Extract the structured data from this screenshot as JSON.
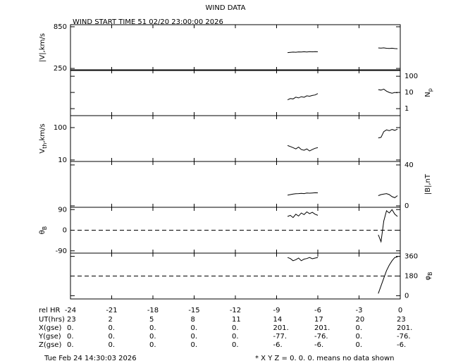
{
  "header": {
    "title": "WIND DATA",
    "subtitle": "WIND START TIME  51 02/20 23:00:00 2026"
  },
  "chart_data": [
    {
      "type": "line",
      "y_label": "|V|,km/s",
      "axis_side": "left",
      "log": false,
      "color": "#000000",
      "xlim": [
        -24,
        0
      ],
      "xticks": [
        -24,
        -21,
        -18,
        -15,
        -12,
        -9,
        -6,
        -3,
        0
      ],
      "ylim": [
        220,
        880
      ],
      "yticks": [
        250,
        850
      ],
      "x": [
        -8.2,
        -8.0,
        -7.8,
        -7.6,
        -7.4,
        -7.2,
        -7.0,
        -6.8,
        -6.6,
        -6.4,
        -6.2,
        -6.0,
        -4,
        -1.6,
        -1.4,
        -1.2,
        -1.0,
        -0.8,
        -0.6,
        -0.4,
        -0.2
      ],
      "values": [
        478,
        482,
        485,
        483,
        488,
        486,
        490,
        487,
        491,
        489,
        492,
        490,
        null,
        545,
        543,
        546,
        540,
        538,
        541,
        536,
        534
      ]
    },
    {
      "type": "line",
      "y_label": "N",
      "y_label_sub": "p",
      "axis_side": "right",
      "log": true,
      "color": "#000000",
      "xlim": [
        -24,
        0
      ],
      "xticks": [
        -24,
        -21,
        -18,
        -15,
        -12,
        -9,
        -6,
        -3,
        0
      ],
      "ylim": [
        0.37,
        250
      ],
      "yticks": [
        1,
        10,
        100
      ],
      "x": [
        -8.2,
        -8.0,
        -7.8,
        -7.6,
        -7.4,
        -7.2,
        -7.0,
        -6.8,
        -6.6,
        -6.4,
        -6.2,
        -6.0,
        -4,
        -1.6,
        -1.4,
        -1.2,
        -1.0,
        -0.8,
        -0.6,
        -0.4,
        -0.2
      ],
      "values": [
        3.5,
        4.2,
        4.0,
        5.1,
        4.6,
        5.5,
        5.0,
        6.2,
        5.8,
        6.5,
        7.0,
        8.5,
        null,
        15,
        14,
        16,
        12,
        10,
        9,
        10,
        9.5
      ]
    },
    {
      "type": "line",
      "y_label": "V",
      "y_label_sub": "th",
      "y_label_suffix": ",km/s",
      "axis_side": "left",
      "log": true,
      "color": "#000000",
      "xlim": [
        -24,
        0
      ],
      "xticks": [
        -24,
        -21,
        -18,
        -15,
        -12,
        -9,
        -6,
        -3,
        0
      ],
      "ylim": [
        9,
        234
      ],
      "yticks": [
        10,
        100
      ],
      "x": [
        -8.2,
        -8.0,
        -7.8,
        -7.6,
        -7.4,
        -7.2,
        -7.0,
        -6.8,
        -6.6,
        -6.4,
        -6.2,
        -6.0,
        -4,
        -1.6,
        -1.4,
        -1.2,
        -1.0,
        -0.8,
        -0.6,
        -0.4,
        -0.2
      ],
      "values": [
        28,
        26,
        24,
        22,
        25,
        21,
        20,
        22,
        19,
        21,
        23,
        24,
        null,
        48,
        50,
        75,
        85,
        80,
        88,
        82,
        90
      ]
    },
    {
      "type": "line",
      "y_label": "|B|,nT",
      "axis_side": "right",
      "log": false,
      "color": "#000000",
      "xlim": [
        -24,
        0
      ],
      "xticks": [
        -24,
        -21,
        -18,
        -15,
        -12,
        -9,
        -6,
        -3,
        0
      ],
      "ylim": [
        -1.4,
        43.4
      ],
      "yticks": [
        0,
        40
      ],
      "x": [
        -8.2,
        -8.0,
        -7.8,
        -7.6,
        -7.4,
        -7.2,
        -7.0,
        -6.8,
        -6.6,
        -6.4,
        -6.2,
        -6.0,
        -4,
        -1.6,
        -1.4,
        -1.2,
        -1.0,
        -0.8,
        -0.6,
        -0.4,
        -0.2
      ],
      "values": [
        10.5,
        11,
        11.5,
        11.8,
        12,
        12.2,
        12,
        12.5,
        12.4,
        12.6,
        12.8,
        12.7,
        null,
        10,
        11,
        11.5,
        12,
        11,
        9,
        8,
        10
      ]
    },
    {
      "type": "line",
      "y_label": "θ",
      "y_label_sub": "B",
      "axis_side": "left",
      "log": false,
      "color": "#000000",
      "xlim": [
        -24,
        0
      ],
      "xticks": [
        -24,
        -21,
        -18,
        -15,
        -12,
        -9,
        -6,
        -3,
        0
      ],
      "ylim": [
        -100,
        100
      ],
      "yticks": [
        -90,
        0,
        90
      ],
      "reference_line": 0,
      "x": [
        -8.2,
        -8.0,
        -7.8,
        -7.6,
        -7.4,
        -7.2,
        -7.0,
        -6.8,
        -6.6,
        -6.4,
        -6.2,
        -6.0,
        -4,
        -1.6,
        -1.4,
        -1.2,
        -1.0,
        -0.8,
        -0.6,
        -0.4,
        -0.2
      ],
      "values": [
        60,
        65,
        55,
        70,
        62,
        75,
        68,
        80,
        72,
        78,
        70,
        65,
        null,
        -20,
        -50,
        40,
        85,
        75,
        90,
        70,
        60
      ]
    },
    {
      "type": "line",
      "y_label": "φ",
      "y_label_sub": "B",
      "axis_side": "right",
      "log": false,
      "color": "#000000",
      "xlim": [
        -24,
        0
      ],
      "xticks": [
        -24,
        -21,
        -18,
        -15,
        -12,
        -9,
        -6,
        -3,
        0
      ],
      "ylim": [
        -30,
        390
      ],
      "yticks": [
        0,
        180,
        360
      ],
      "reference_line": 180,
      "x": [
        -8.2,
        -8.0,
        -7.8,
        -7.6,
        -7.4,
        -7.2,
        -7.0,
        -6.8,
        -6.6,
        -6.4,
        -6.2,
        -6.0,
        -4,
        -1.6,
        -1.4,
        -1.2,
        -1.0,
        -0.8,
        -0.6,
        -0.4,
        -0.2
      ],
      "values": [
        350,
        340,
        320,
        330,
        345,
        320,
        335,
        340,
        350,
        338,
        345,
        350,
        null,
        20,
        90,
        160,
        230,
        280,
        320,
        350,
        355
      ]
    }
  ],
  "orbit_table": {
    "rel_hr_label": "rel HR",
    "rows": [
      {
        "label": "UT(hrs)",
        "cells": [
          23,
          2,
          5,
          8,
          11,
          14,
          17,
          20,
          23
        ]
      },
      {
        "label": "X(gse)",
        "cells": [
          "0.",
          "0.",
          "0.",
          "0.",
          "0.",
          "201.",
          "201.",
          "0.",
          "201."
        ]
      },
      {
        "label": "Y(gse)",
        "cells": [
          "0.",
          "0.",
          "0.",
          "0.",
          "0.",
          "-77.",
          "-76.",
          "0.",
          "-76."
        ]
      },
      {
        "label": "Z(gse)",
        "cells": [
          "0.",
          "0.",
          "0.",
          "0.",
          "0.",
          "-6.",
          "-6.",
          "0.",
          "-6."
        ]
      }
    ]
  },
  "footer": {
    "timestamp": "Tue Feb 24 14:30:03 2026",
    "note": "* X Y Z = 0. 0. 0. means no data shown"
  }
}
